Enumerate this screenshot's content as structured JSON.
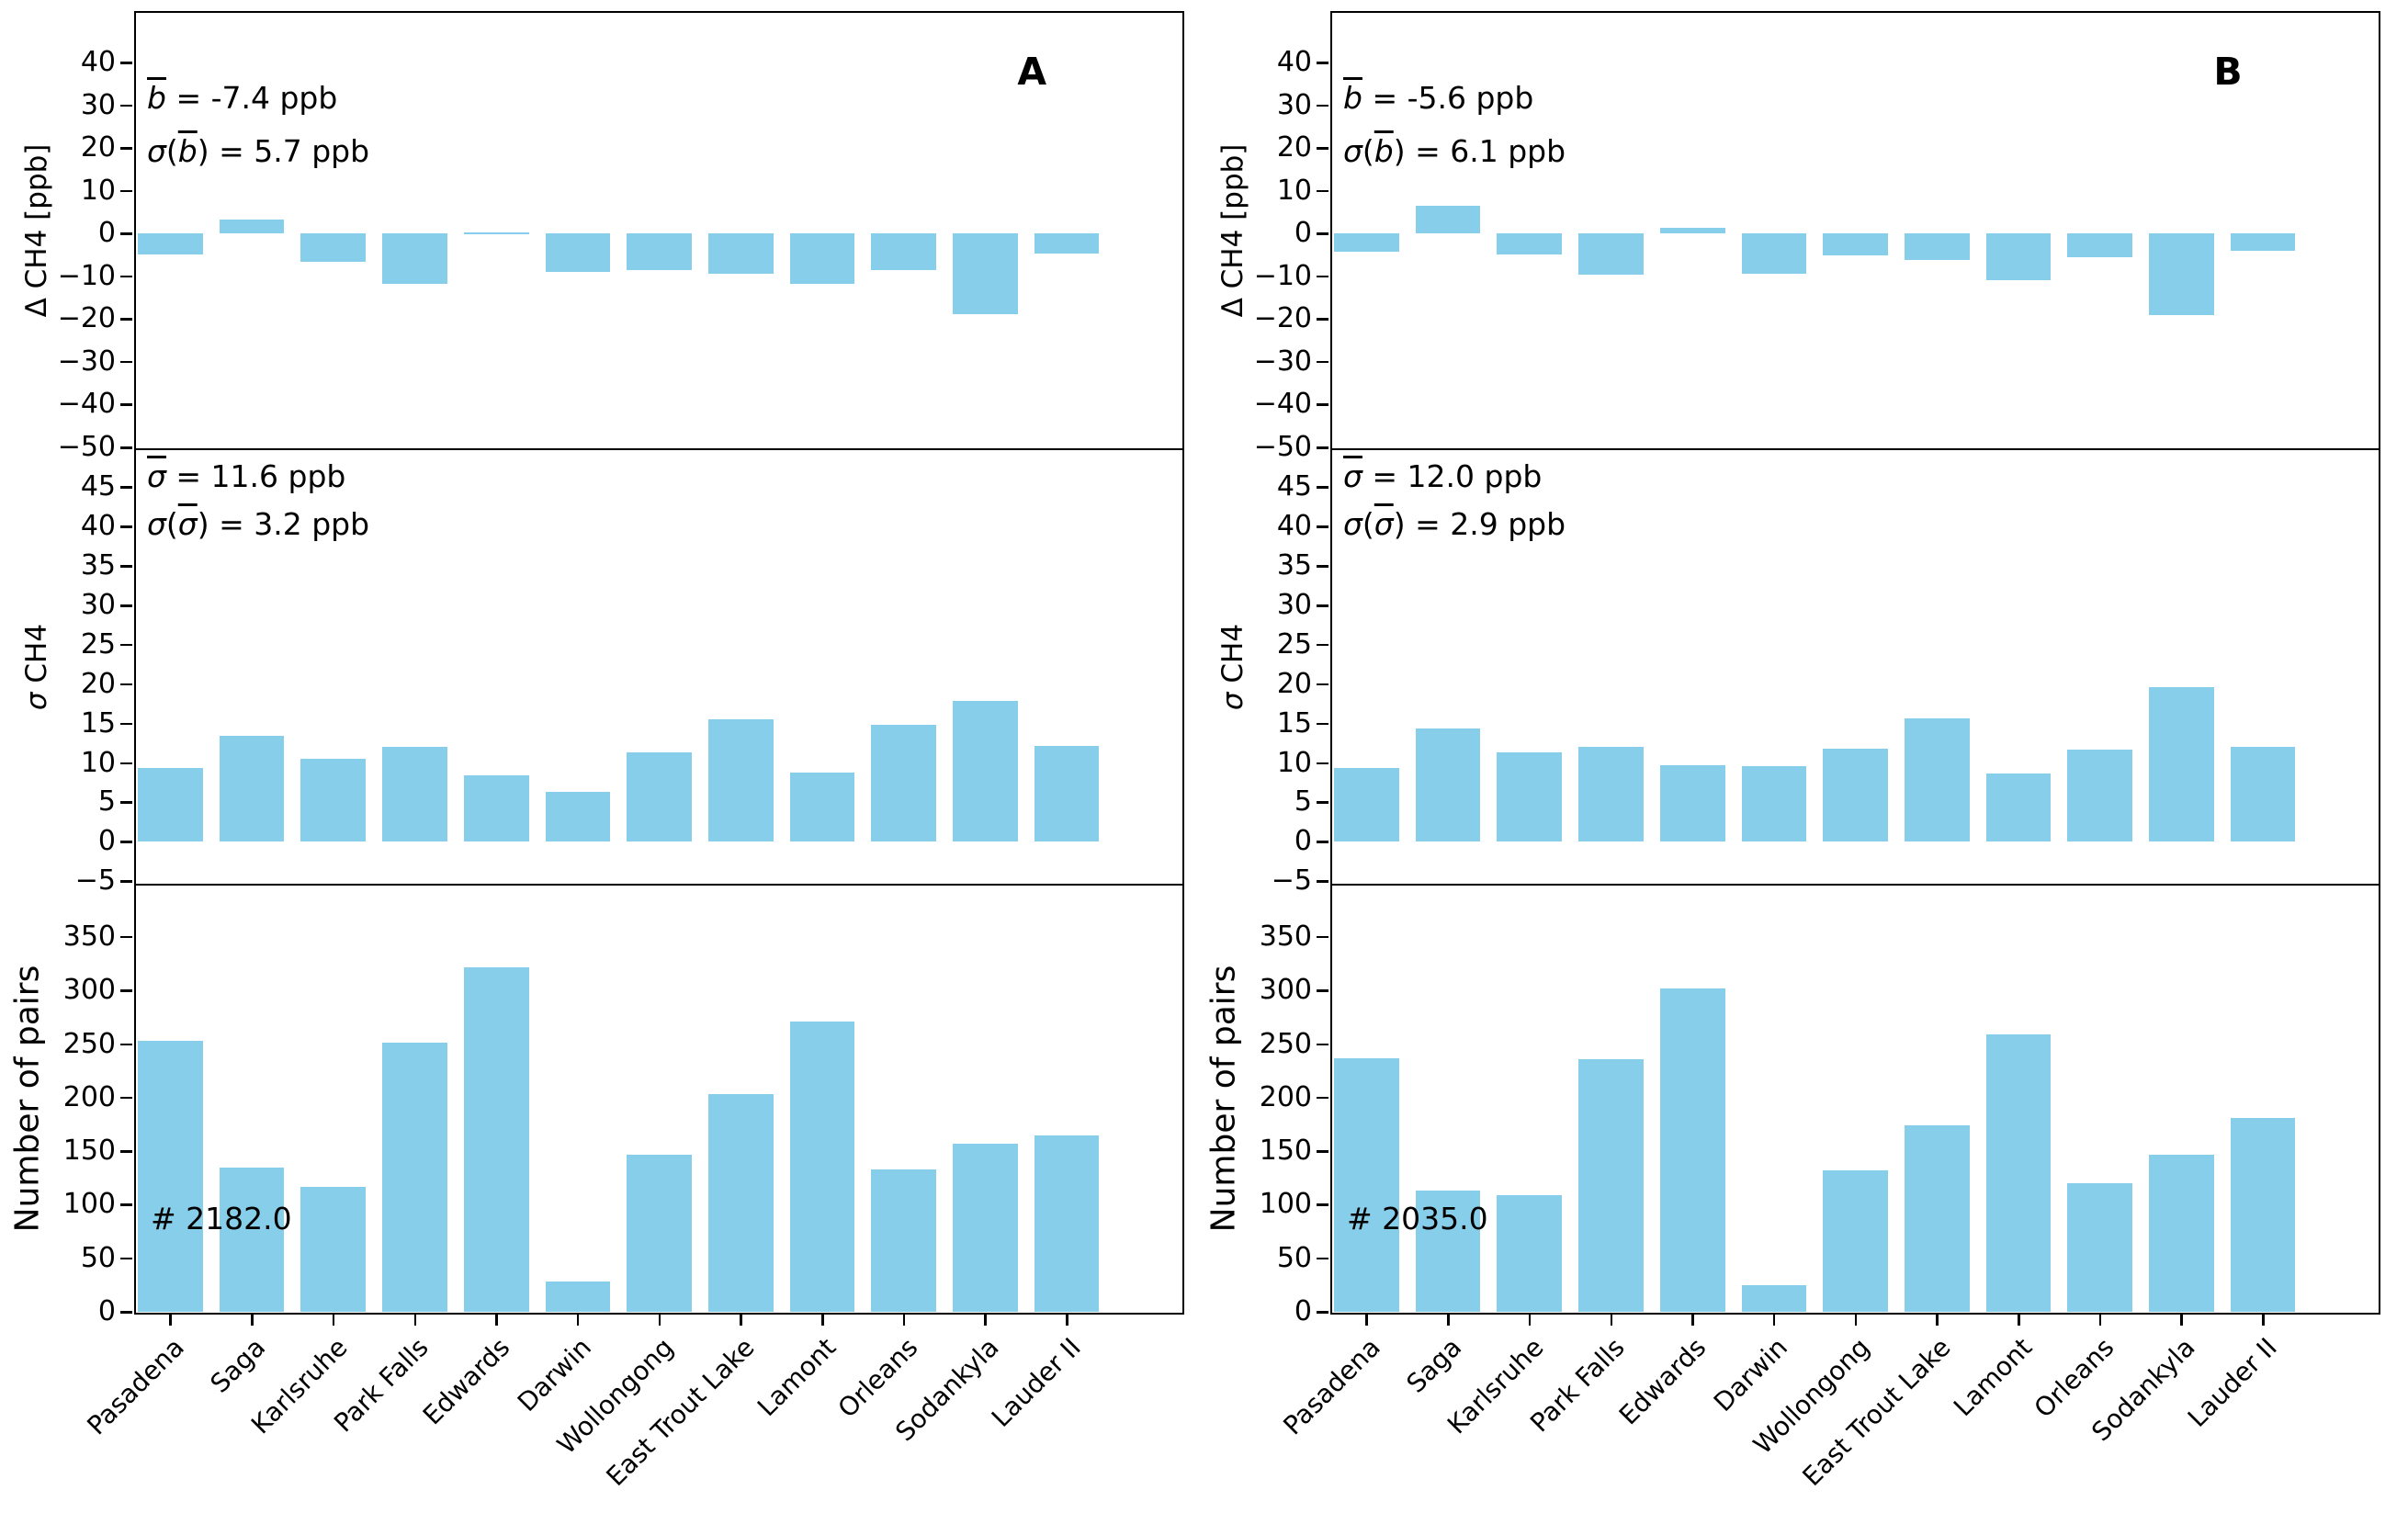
{
  "figure": {
    "bar_color": "#87CEEB",
    "axis_color": "#000000",
    "background": "#ffffff"
  },
  "categories": [
    "Pasadena",
    "Saga",
    "Karlsruhe",
    "Park Falls",
    "Edwards",
    "Darwin",
    "Wollongong",
    "East Trout Lake",
    "Lamont",
    "Orleans",
    "Sodankyla",
    "Lauder II"
  ],
  "panels": [
    {
      "letter": "A",
      "mean_bias_ppb": "-7.4",
      "sigma_mean_bias_ppb": "5.7",
      "mean_sigma_ppb": "11.6",
      "sigma_mean_sigma_ppb": "3.2",
      "total_pairs": "2182.0"
    },
    {
      "letter": "B",
      "mean_bias_ppb": "-5.6",
      "sigma_mean_bias_ppb": "6.1",
      "mean_sigma_ppb": "12.0",
      "sigma_mean_sigma_ppb": "2.9",
      "total_pairs": "2035.0"
    }
  ],
  "chart_data": [
    {
      "panel": "A",
      "row": "delta",
      "type": "bar",
      "ylabel": "Δ CH4 [ppb]",
      "ylabel_parts": [
        {
          "t": "Δ CH4 [ppb]"
        }
      ],
      "ylim": [
        -50,
        51.7
      ],
      "yticks": [
        40,
        30,
        20,
        10,
        0,
        -10,
        -20,
        -30,
        -40,
        -50
      ],
      "grid": false,
      "legend": false,
      "panel_letter": "A",
      "categories": [
        "Pasadena",
        "Saga",
        "Karlsruhe",
        "Park Falls",
        "Edwards",
        "Darwin",
        "Wollongong",
        "East Trout Lake",
        "Lamont",
        "Orleans",
        "Sodankyla",
        "Lauder II"
      ],
      "values": [
        -4.8,
        3.3,
        -6.5,
        -11.8,
        0.4,
        -9.0,
        -8.5,
        -9.3,
        -11.8,
        -8.5,
        -18.9,
        -4.7
      ],
      "annotation_text": [
        "b = -7.4 ppb",
        "σ(b) = 5.7 ppb"
      ],
      "annotation_lines": [
        [
          {
            "t": "b",
            "i": true,
            "ov": true
          },
          {
            "t": " = -7.4 ppb"
          }
        ],
        [
          {
            "t": "σ",
            "i": true
          },
          {
            "t": "("
          },
          {
            "t": "b",
            "i": true,
            "ov": true
          },
          {
            "t": ") = 5.7 ppb"
          }
        ]
      ]
    },
    {
      "panel": "A",
      "row": "sigma",
      "type": "bar",
      "ylabel": "σ CH4",
      "ylabel_parts": [
        {
          "t": "σ",
          "i": true
        },
        {
          "t": " CH4"
        }
      ],
      "ylim": [
        -5.2,
        49.7
      ],
      "yticks": [
        45,
        40,
        35,
        30,
        25,
        20,
        15,
        10,
        5,
        0,
        -5
      ],
      "grid": false,
      "legend": false,
      "categories": [
        "Pasadena",
        "Saga",
        "Karlsruhe",
        "Park Falls",
        "Edwards",
        "Darwin",
        "Wollongong",
        "East Trout Lake",
        "Lamont",
        "Orleans",
        "Sodankyla",
        "Lauder II"
      ],
      "values": [
        9.4,
        13.5,
        10.5,
        12.0,
        8.4,
        6.3,
        11.4,
        15.5,
        8.8,
        14.8,
        17.9,
        12.2
      ],
      "annotation_text": [
        "σ = 11.6 ppb",
        "σ(σ) = 3.2 ppb"
      ],
      "annotation_lines": [
        [
          {
            "t": "σ",
            "i": true,
            "ov": true
          },
          {
            "t": " = 11.6 ppb"
          }
        ],
        [
          {
            "t": "σ",
            "i": true
          },
          {
            "t": "("
          },
          {
            "t": "σ",
            "i": true,
            "ov": true
          },
          {
            "t": ") = 3.2 ppb"
          }
        ]
      ]
    },
    {
      "panel": "A",
      "row": "pairs",
      "type": "bar",
      "ylabel": "Number of pairs",
      "ylabel_parts": [
        {
          "t": "Number of pairs"
        }
      ],
      "ylim": [
        0,
        398
      ],
      "yticks": [
        350,
        300,
        250,
        200,
        150,
        100,
        50,
        0
      ],
      "grid": false,
      "legend": false,
      "categories": [
        "Pasadena",
        "Saga",
        "Karlsruhe",
        "Park Falls",
        "Edwards",
        "Darwin",
        "Wollongong",
        "East Trout Lake",
        "Lamont",
        "Orleans",
        "Sodankyla",
        "Lauder II"
      ],
      "values": [
        253,
        135,
        117,
        251,
        322,
        28,
        147,
        203,
        271,
        133,
        157,
        165
      ],
      "annotation_text": [
        "# 2182.0"
      ],
      "annotation_lines": [
        [
          {
            "t": "# 2182.0"
          }
        ]
      ]
    },
    {
      "panel": "B",
      "row": "delta",
      "type": "bar",
      "ylabel": "Δ CH4 [ppb]",
      "ylabel_parts": [
        {
          "t": "Δ CH4 [ppb]"
        }
      ],
      "ylim": [
        -50,
        51.7
      ],
      "yticks": [
        40,
        30,
        20,
        10,
        0,
        -10,
        -20,
        -30,
        -40,
        -50
      ],
      "grid": false,
      "legend": false,
      "panel_letter": "B",
      "categories": [
        "Pasadena",
        "Saga",
        "Karlsruhe",
        "Park Falls",
        "Edwards",
        "Darwin",
        "Wollongong",
        "East Trout Lake",
        "Lamont",
        "Orleans",
        "Sodankyla",
        "Lauder II"
      ],
      "values": [
        -4.3,
        6.6,
        -4.9,
        -9.5,
        1.4,
        -9.3,
        -5.1,
        -6.2,
        -10.9,
        -5.4,
        -19.1,
        -3.9
      ],
      "annotation_text": [
        "b = -5.6 ppb",
        "σ(b) = 6.1 ppb"
      ],
      "annotation_lines": [
        [
          {
            "t": "b",
            "i": true,
            "ov": true
          },
          {
            "t": " = -5.6 ppb"
          }
        ],
        [
          {
            "t": "σ",
            "i": true
          },
          {
            "t": "("
          },
          {
            "t": "b",
            "i": true,
            "ov": true
          },
          {
            "t": ") = 6.1 ppb"
          }
        ]
      ]
    },
    {
      "panel": "B",
      "row": "sigma",
      "type": "bar",
      "ylabel": "σ CH4",
      "ylabel_parts": [
        {
          "t": "σ",
          "i": true
        },
        {
          "t": " CH4"
        }
      ],
      "ylim": [
        -5.2,
        49.7
      ],
      "yticks": [
        45,
        40,
        35,
        30,
        25,
        20,
        15,
        10,
        5,
        0,
        -5
      ],
      "grid": false,
      "legend": false,
      "categories": [
        "Pasadena",
        "Saga",
        "Karlsruhe",
        "Park Falls",
        "Edwards",
        "Darwin",
        "Wollongong",
        "East Trout Lake",
        "Lamont",
        "Orleans",
        "Sodankyla",
        "Lauder II"
      ],
      "values": [
        9.4,
        14.4,
        11.3,
        12.1,
        9.7,
        9.6,
        11.8,
        15.7,
        8.7,
        11.7,
        19.6,
        12.0
      ],
      "annotation_text": [
        "σ = 12.0 ppb",
        "σ(σ) = 2.9 ppb"
      ],
      "annotation_lines": [
        [
          {
            "t": "σ",
            "i": true,
            "ov": true
          },
          {
            "t": " = 12.0 ppb"
          }
        ],
        [
          {
            "t": "σ",
            "i": true
          },
          {
            "t": "("
          },
          {
            "t": "σ",
            "i": true,
            "ov": true
          },
          {
            "t": ") = 2.9 ppb"
          }
        ]
      ]
    },
    {
      "panel": "B",
      "row": "pairs",
      "type": "bar",
      "ylabel": "Number of pairs",
      "ylabel_parts": [
        {
          "t": "Number of pairs"
        }
      ],
      "ylim": [
        0,
        398
      ],
      "yticks": [
        350,
        300,
        250,
        200,
        150,
        100,
        50,
        0
      ],
      "grid": false,
      "legend": false,
      "categories": [
        "Pasadena",
        "Saga",
        "Karlsruhe",
        "Park Falls",
        "Edwards",
        "Darwin",
        "Wollongong",
        "East Trout Lake",
        "Lamont",
        "Orleans",
        "Sodankyla",
        "Lauder II"
      ],
      "values": [
        237,
        113,
        109,
        236,
        302,
        25,
        132,
        174,
        259,
        120,
        147,
        181
      ],
      "annotation_text": [
        "# 2035.0"
      ],
      "annotation_lines": [
        [
          {
            "t": "# 2035.0"
          }
        ]
      ]
    }
  ]
}
